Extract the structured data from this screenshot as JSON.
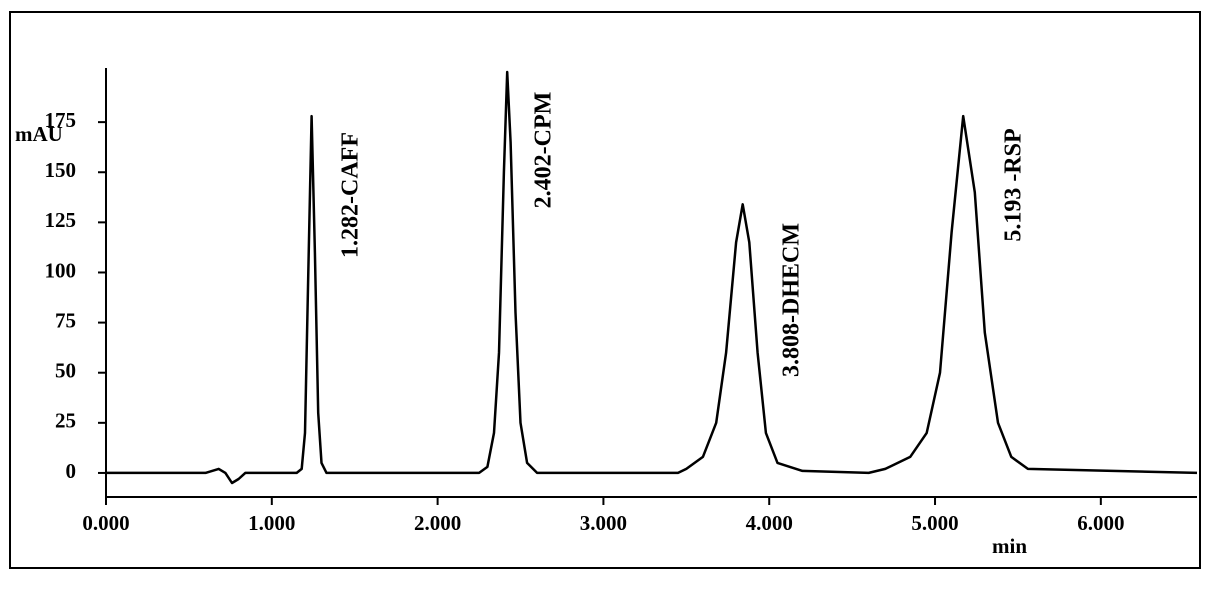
{
  "chart_data": {
    "type": "line",
    "y_label": "mAU",
    "x_label": "min",
    "x": [
      0,
      0.6,
      0.64,
      0.68,
      0.72,
      0.76,
      0.8,
      0.84,
      1.15,
      1.18,
      1.2,
      1.22,
      1.24,
      1.26,
      1.28,
      1.3,
      1.33,
      2.25,
      2.3,
      2.34,
      2.37,
      2.4,
      2.42,
      2.44,
      2.47,
      2.5,
      2.54,
      2.6,
      3.45,
      3.5,
      3.6,
      3.68,
      3.74,
      3.8,
      3.84,
      3.88,
      3.93,
      3.98,
      4.05,
      4.2,
      4.6,
      4.7,
      4.85,
      4.95,
      5.03,
      5.1,
      5.17,
      5.24,
      5.3,
      5.38,
      5.46,
      5.56,
      6.58
    ],
    "series": [
      {
        "color": "#000000",
        "values": [
          0,
          0,
          1,
          2,
          0,
          -5,
          -3,
          0,
          0,
          2,
          20,
          100,
          178,
          110,
          30,
          5,
          0,
          0,
          3,
          20,
          60,
          150,
          200,
          165,
          80,
          25,
          5,
          0,
          0,
          2,
          8,
          25,
          60,
          115,
          134,
          115,
          60,
          20,
          5,
          1,
          0,
          2,
          8,
          20,
          50,
          120,
          178,
          140,
          70,
          25,
          8,
          2,
          0
        ]
      }
    ],
    "annotations": [
      "1.282-CAFF",
      "2.402-CPM",
      "3.808-DHECM",
      "5.193 -RSP"
    ],
    "xlim": [
      0,
      6.58
    ],
    "ylim": [
      -12,
      202
    ],
    "xticks": [
      {
        "value": 0,
        "label": "0.000"
      },
      {
        "value": 1,
        "label": "1.000"
      },
      {
        "value": 2,
        "label": "2.000"
      },
      {
        "value": 3,
        "label": "3.000"
      },
      {
        "value": 4,
        "label": "4.000"
      },
      {
        "value": 5,
        "label": "5.000"
      },
      {
        "value": 6,
        "label": "6.000"
      }
    ],
    "yticks": [
      0,
      25,
      50,
      75,
      100,
      125,
      150,
      175
    ],
    "grid": false
  }
}
